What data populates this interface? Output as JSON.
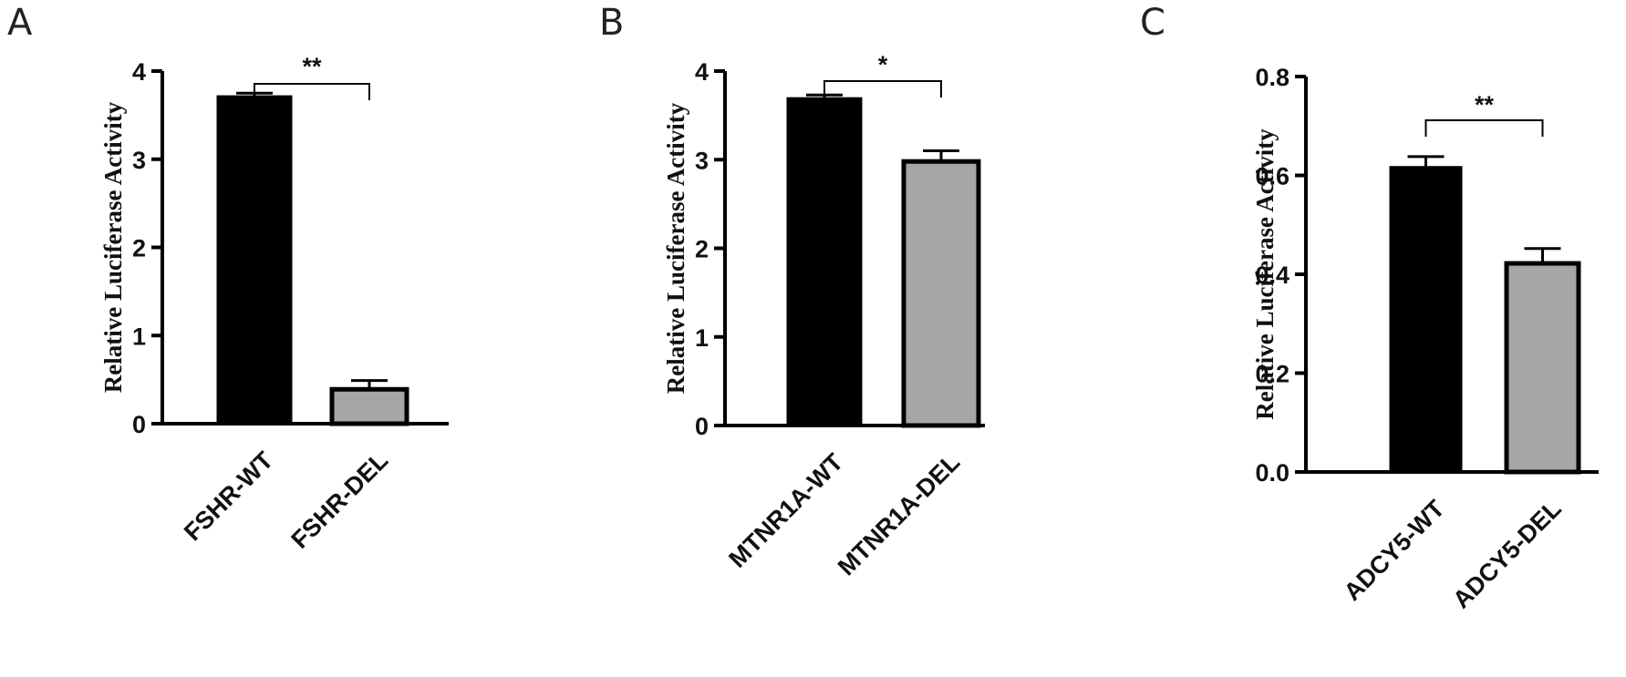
{
  "colors": {
    "wt": "#000000",
    "del": "#a6a6a6",
    "outline": "#000000"
  },
  "chart_data": [
    {
      "panel": "A",
      "type": "bar",
      "ylabel": "Relative Luciferase Activity",
      "ylim": [
        0,
        4
      ],
      "yticks": [
        "0",
        "1",
        "2",
        "3",
        "4"
      ],
      "categories": [
        "FSHR-WT",
        "FSHR-DEL"
      ],
      "values": [
        3.72,
        0.39
      ],
      "errors": [
        0.03,
        0.1
      ],
      "significance": "**"
    },
    {
      "panel": "B",
      "type": "bar",
      "ylabel": "Relative Luciferase Activity",
      "ylim": [
        0,
        4
      ],
      "yticks": [
        "0",
        "1",
        "2",
        "3",
        "4"
      ],
      "categories": [
        "MTNR1A-WT",
        "MTNR1A-DEL"
      ],
      "values": [
        3.7,
        2.98
      ],
      "errors": [
        0.03,
        0.12
      ],
      "significance": "*"
    },
    {
      "panel": "C",
      "type": "bar",
      "ylabel": "Relative Luciferase Activity",
      "ylim": [
        0,
        0.8
      ],
      "yticks": [
        "0.0",
        "0.2",
        "0.4",
        "0.6",
        "0.8"
      ],
      "categories": [
        "ADCY5-WT",
        "ADCY5-DEL"
      ],
      "values": [
        0.618,
        0.422
      ],
      "errors": [
        0.02,
        0.03
      ],
      "significance": "**"
    }
  ]
}
